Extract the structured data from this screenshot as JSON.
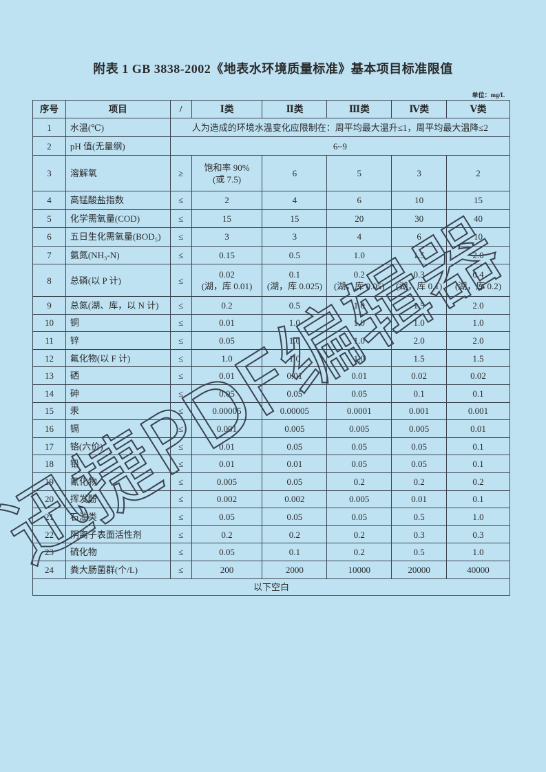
{
  "title": "附表 1    GB 3838-2002《地表水环境质量标准》基本项目标准限值",
  "unit": "单位：mg/L",
  "headers": [
    "序号",
    "项目",
    "/",
    "Ⅰ类",
    "Ⅱ类",
    "Ⅲ类",
    "Ⅳ类",
    "Ⅴ类"
  ],
  "rows": [
    {
      "no": "1",
      "item": "水温(℃)",
      "span": "人为造成的环境水温变化应限制在：周平均最大温升≤1，周平均最大温降≤2"
    },
    {
      "no": "2",
      "item": "pH 值(无量纲)",
      "span": "6~9"
    },
    {
      "no": "3",
      "item": "溶解氧",
      "op": "≥",
      "v": [
        "饱和率 90%\n(或 7.5)",
        "6",
        "5",
        "3",
        "2"
      ]
    },
    {
      "no": "4",
      "item": "高锰酸盐指数",
      "op": "≤",
      "v": [
        "2",
        "4",
        "6",
        "10",
        "15"
      ]
    },
    {
      "no": "5",
      "item": "化学需氧量(COD)",
      "op": "≤",
      "v": [
        "15",
        "15",
        "20",
        "30",
        "40"
      ]
    },
    {
      "no": "6",
      "item": "五日生化需氧量(BOD₅)",
      "op": "≤",
      "v": [
        "3",
        "3",
        "4",
        "6",
        "10"
      ]
    },
    {
      "no": "7",
      "item": "氨氮(NH₃-N)",
      "op": "≤",
      "v": [
        "0.15",
        "0.5",
        "1.0",
        "1.5",
        "2.0"
      ]
    },
    {
      "no": "8",
      "item": "总磷(以 P 计)",
      "op": "≤",
      "v": [
        "0.02\n(湖，库 0.01)",
        "0.1\n(湖，库 0.025)",
        "0.2\n(湖，库 0.05)",
        "0.3\n(湖，库 0.1)",
        "0.4\n(湖，库 0.2)"
      ]
    },
    {
      "no": "9",
      "item": "总氮(湖、库，以 N 计)",
      "op": "≤",
      "v": [
        "0.2",
        "0.5",
        "1.0",
        "1.5",
        "2.0"
      ]
    },
    {
      "no": "10",
      "item": "铜",
      "op": "≤",
      "v": [
        "0.01",
        "1.0",
        "1.0",
        "1.0",
        "1.0"
      ]
    },
    {
      "no": "11",
      "item": "锌",
      "op": "≤",
      "v": [
        "0.05",
        "1.0",
        "1.0",
        "2.0",
        "2.0"
      ]
    },
    {
      "no": "12",
      "item": "氟化物(以 F 计)",
      "op": "≤",
      "v": [
        "1.0",
        "1.0",
        "1.0",
        "1.5",
        "1.5"
      ]
    },
    {
      "no": "13",
      "item": "硒",
      "op": "≤",
      "v": [
        "0.01",
        "0.01",
        "0.01",
        "0.02",
        "0.02"
      ]
    },
    {
      "no": "14",
      "item": "砷",
      "op": "≤",
      "v": [
        "0.05",
        "0.05",
        "0.05",
        "0.1",
        "0.1"
      ]
    },
    {
      "no": "15",
      "item": "汞",
      "op": "≤",
      "v": [
        "0.00005",
        "0.00005",
        "0.0001",
        "0.001",
        "0.001"
      ]
    },
    {
      "no": "16",
      "item": "镉",
      "op": "≤",
      "v": [
        "0.001",
        "0.005",
        "0.005",
        "0.005",
        "0.01"
      ]
    },
    {
      "no": "17",
      "item": "铬(六价)",
      "op": "≤",
      "v": [
        "0.01",
        "0.05",
        "0.05",
        "0.05",
        "0.1"
      ]
    },
    {
      "no": "18",
      "item": "铅",
      "op": "≤",
      "v": [
        "0.01",
        "0.01",
        "0.05",
        "0.05",
        "0.1"
      ]
    },
    {
      "no": "19",
      "item": "氰化物",
      "op": "≤",
      "v": [
        "0.005",
        "0.05",
        "0.2",
        "0.2",
        "0.2"
      ]
    },
    {
      "no": "20",
      "item": "挥发酚",
      "op": "≤",
      "v": [
        "0.002",
        "0.002",
        "0.005",
        "0.01",
        "0.1"
      ]
    },
    {
      "no": "21",
      "item": "石油类",
      "op": "≤",
      "v": [
        "0.05",
        "0.05",
        "0.05",
        "0.5",
        "1.0"
      ]
    },
    {
      "no": "22",
      "item": "阴离子表面活性剂",
      "op": "≤",
      "v": [
        "0.2",
        "0.2",
        "0.2",
        "0.3",
        "0.3"
      ]
    },
    {
      "no": "23",
      "item": "硫化物",
      "op": "≤",
      "v": [
        "0.05",
        "0.1",
        "0.2",
        "0.5",
        "1.0"
      ]
    },
    {
      "no": "24",
      "item": "粪大肠菌群(个/L)",
      "op": "≤",
      "v": [
        "200",
        "2000",
        "10000",
        "20000",
        "40000"
      ]
    }
  ],
  "footer": "以下空白",
  "watermark": "迅捷PDF编辑器",
  "colors": {
    "background": "#bfe2f3",
    "text": "#2a2a2a",
    "watermark": "#3a4350"
  }
}
